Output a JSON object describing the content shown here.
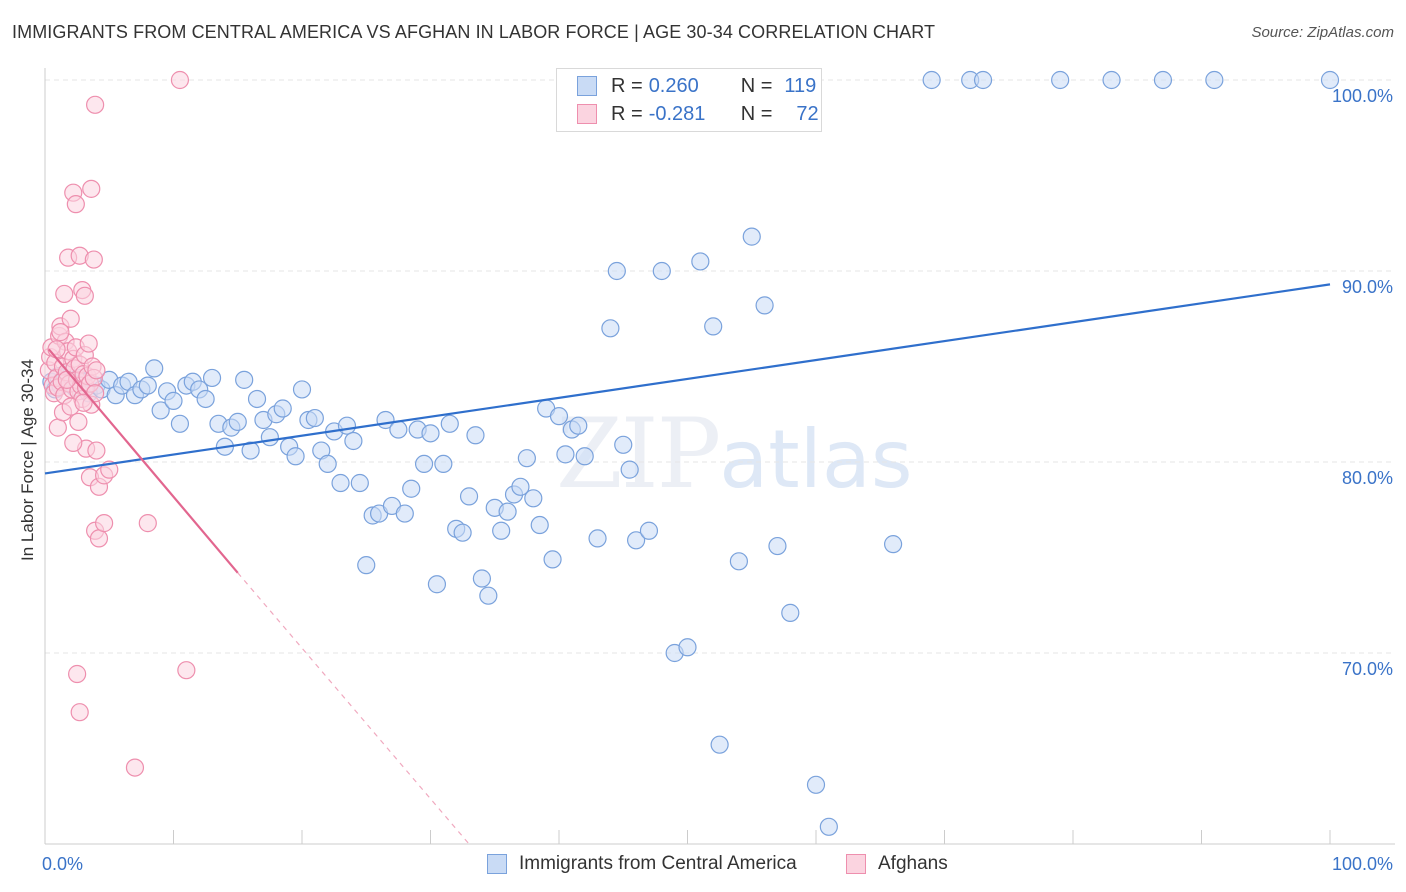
{
  "header": {
    "title": "IMMIGRANTS FROM CENTRAL AMERICA VS AFGHAN IN LABOR FORCE | AGE 30-34 CORRELATION CHART",
    "source": "Source: ZipAtlas.com"
  },
  "watermark": {
    "part1": "ZIP",
    "part2": "atlas"
  },
  "legend": {
    "rows": [
      {
        "r_label": "R =",
        "r_value": "0.260",
        "n_label": "N =",
        "n_value": "119",
        "color": "#a9c6ee"
      },
      {
        "r_label": "R =",
        "r_value": "-0.281",
        "n_label": "N =",
        "n_value": "72",
        "color": "#f5b8cb"
      }
    ]
  },
  "bottom_legend": [
    {
      "label": "Immigrants from Central America",
      "color": "#a9c6ee"
    },
    {
      "label": "Afghans",
      "color": "#f5b8cb"
    }
  ],
  "chart_data": {
    "type": "scatter",
    "title": "IMMIGRANTS FROM CENTRAL AMERICA VS AFGHAN IN LABOR FORCE | AGE 30-34 CORRELATION CHART",
    "xlabel": "",
    "ylabel": "In Labor Force | Age 30-34",
    "xlim": [
      0,
      100
    ],
    "ylim": [
      60,
      100
    ],
    "x_tick_labels": [
      "0.0%",
      "100.0%"
    ],
    "y_tick_labels": [
      "70.0%",
      "80.0%",
      "90.0%",
      "100.0%"
    ],
    "y_ticks": [
      70,
      80,
      90,
      100
    ],
    "grid": true,
    "legend_position": "top-center",
    "series": [
      {
        "name": "Immigrants from Central America",
        "color": "#5b8fd6",
        "trend": {
          "x0": 0,
          "y0": 79.4,
          "x1": 100,
          "y1": 89.3
        },
        "points": [
          [
            0.5,
            84.2
          ],
          [
            0.8,
            83.8
          ],
          [
            1.0,
            84.5
          ],
          [
            1.2,
            84.0
          ],
          [
            1.5,
            84.3
          ],
          [
            1.8,
            84.6
          ],
          [
            2.0,
            84.1
          ],
          [
            2.3,
            83.9
          ],
          [
            2.6,
            84.4
          ],
          [
            3.0,
            84.2
          ],
          [
            3.4,
            83.6
          ],
          [
            4.0,
            84.0
          ],
          [
            4.4,
            83.8
          ],
          [
            5.0,
            84.3
          ],
          [
            5.5,
            83.5
          ],
          [
            6.0,
            84.0
          ],
          [
            6.5,
            84.2
          ],
          [
            7.0,
            83.5
          ],
          [
            7.5,
            83.8
          ],
          [
            8.0,
            84.0
          ],
          [
            8.5,
            84.9
          ],
          [
            9.0,
            82.7
          ],
          [
            9.5,
            83.7
          ],
          [
            10.0,
            83.2
          ],
          [
            10.5,
            82.0
          ],
          [
            11.0,
            84.0
          ],
          [
            11.5,
            84.2
          ],
          [
            12.0,
            83.8
          ],
          [
            12.5,
            83.3
          ],
          [
            13.0,
            84.4
          ],
          [
            13.5,
            82.0
          ],
          [
            14.0,
            80.8
          ],
          [
            14.5,
            81.8
          ],
          [
            15.0,
            82.1
          ],
          [
            15.5,
            84.3
          ],
          [
            16.0,
            80.6
          ],
          [
            16.5,
            83.3
          ],
          [
            17.0,
            82.2
          ],
          [
            17.5,
            81.3
          ],
          [
            18.0,
            82.5
          ],
          [
            18.5,
            82.8
          ],
          [
            19.0,
            80.8
          ],
          [
            19.5,
            80.3
          ],
          [
            20.0,
            83.8
          ],
          [
            20.5,
            82.2
          ],
          [
            21.0,
            82.3
          ],
          [
            21.5,
            80.6
          ],
          [
            22.0,
            79.9
          ],
          [
            22.5,
            81.6
          ],
          [
            23.0,
            78.9
          ],
          [
            23.5,
            81.9
          ],
          [
            24.0,
            81.1
          ],
          [
            24.5,
            78.9
          ],
          [
            25.0,
            74.6
          ],
          [
            25.5,
            77.2
          ],
          [
            26.0,
            77.3
          ],
          [
            26.5,
            82.2
          ],
          [
            27.0,
            77.7
          ],
          [
            27.5,
            81.7
          ],
          [
            28.0,
            77.3
          ],
          [
            28.5,
            78.6
          ],
          [
            29.0,
            81.7
          ],
          [
            29.5,
            79.9
          ],
          [
            30.0,
            81.5
          ],
          [
            30.5,
            73.6
          ],
          [
            31.0,
            79.9
          ],
          [
            31.5,
            82.0
          ],
          [
            32.0,
            76.5
          ],
          [
            32.5,
            76.3
          ],
          [
            33.0,
            78.2
          ],
          [
            33.5,
            81.4
          ],
          [
            34.0,
            73.9
          ],
          [
            34.5,
            73.0
          ],
          [
            35.0,
            77.6
          ],
          [
            35.5,
            76.4
          ],
          [
            36.0,
            77.4
          ],
          [
            36.5,
            78.3
          ],
          [
            37.0,
            78.7
          ],
          [
            37.5,
            80.2
          ],
          [
            38.0,
            78.1
          ],
          [
            38.5,
            76.7
          ],
          [
            39.0,
            82.8
          ],
          [
            39.5,
            74.9
          ],
          [
            40.0,
            82.4
          ],
          [
            40.5,
            80.4
          ],
          [
            41.0,
            81.7
          ],
          [
            41.5,
            81.9
          ],
          [
            42.0,
            80.3
          ],
          [
            43.0,
            76.0
          ],
          [
            44.0,
            87.0
          ],
          [
            44.5,
            90.0
          ],
          [
            45.0,
            80.9
          ],
          [
            45.5,
            79.6
          ],
          [
            46.0,
            75.9
          ],
          [
            47.0,
            76.4
          ],
          [
            48.0,
            90.0
          ],
          [
            49.0,
            70.0
          ],
          [
            50.0,
            70.3
          ],
          [
            51.0,
            90.5
          ],
          [
            52.0,
            87.1
          ],
          [
            52.5,
            65.2
          ],
          [
            54.0,
            74.8
          ],
          [
            55.0,
            91.8
          ],
          [
            56.0,
            88.2
          ],
          [
            57.0,
            75.6
          ],
          [
            58.0,
            72.1
          ],
          [
            60.0,
            63.1
          ],
          [
            61.0,
            60.9
          ],
          [
            66.0,
            75.7
          ],
          [
            69.0,
            100.0
          ],
          [
            72.0,
            100.0
          ],
          [
            73.0,
            100.0
          ],
          [
            79.0,
            100.0
          ],
          [
            83.0,
            100.0
          ],
          [
            87.0,
            100.0
          ],
          [
            91.0,
            100.0
          ],
          [
            100.0,
            100.0
          ],
          [
            48.5,
            100.0
          ],
          [
            57.0,
            100.0
          ]
        ]
      },
      {
        "name": "Afghans",
        "color": "#ee8fae",
        "trend": {
          "x0": 0.3,
          "y0": 85.9,
          "x1": 15.0,
          "y1": 74.2,
          "dash_x1": 33.0,
          "dash_y1": 60.0
        },
        "points": [
          [
            0.3,
            84.8
          ],
          [
            0.4,
            85.5
          ],
          [
            0.5,
            86.0
          ],
          [
            0.6,
            84.0
          ],
          [
            0.7,
            83.6
          ],
          [
            0.8,
            85.2
          ],
          [
            0.9,
            84.4
          ],
          [
            1.0,
            83.9
          ],
          [
            1.1,
            86.6
          ],
          [
            1.2,
            87.1
          ],
          [
            1.3,
            84.2
          ],
          [
            1.4,
            85.0
          ],
          [
            1.5,
            83.5
          ],
          [
            1.6,
            86.3
          ],
          [
            1.7,
            84.7
          ],
          [
            1.8,
            85.8
          ],
          [
            1.9,
            84.1
          ],
          [
            2.0,
            87.5
          ],
          [
            2.1,
            83.8
          ],
          [
            2.2,
            85.4
          ],
          [
            2.3,
            84.9
          ],
          [
            2.4,
            86.0
          ],
          [
            2.5,
            84.3
          ],
          [
            2.6,
            83.7
          ],
          [
            2.7,
            85.1
          ],
          [
            2.8,
            84.0
          ],
          [
            2.9,
            83.3
          ],
          [
            3.0,
            84.6
          ],
          [
            3.1,
            85.6
          ],
          [
            3.2,
            83.9
          ],
          [
            3.3,
            84.5
          ],
          [
            3.4,
            86.2
          ],
          [
            3.5,
            84.1
          ],
          [
            3.6,
            83.0
          ],
          [
            3.7,
            85.0
          ],
          [
            3.8,
            84.4
          ],
          [
            3.9,
            83.6
          ],
          [
            4.0,
            84.8
          ],
          [
            1.5,
            88.8
          ],
          [
            1.8,
            90.7
          ],
          [
            2.2,
            94.1
          ],
          [
            2.4,
            93.5
          ],
          [
            2.7,
            90.8
          ],
          [
            2.9,
            89.0
          ],
          [
            3.1,
            88.7
          ],
          [
            3.6,
            94.3
          ],
          [
            3.8,
            90.6
          ],
          [
            1.2,
            86.8
          ],
          [
            1.0,
            81.8
          ],
          [
            1.4,
            82.6
          ],
          [
            2.0,
            82.9
          ],
          [
            2.6,
            82.1
          ],
          [
            3.2,
            80.7
          ],
          [
            3.5,
            79.2
          ],
          [
            4.0,
            80.6
          ],
          [
            4.2,
            78.7
          ],
          [
            4.6,
            79.3
          ],
          [
            5.0,
            79.6
          ],
          [
            3.9,
            76.4
          ],
          [
            4.2,
            76.0
          ],
          [
            4.6,
            76.8
          ],
          [
            8.0,
            76.8
          ],
          [
            2.5,
            68.9
          ],
          [
            2.7,
            66.9
          ],
          [
            7.0,
            64.0
          ],
          [
            11.0,
            69.1
          ],
          [
            10.5,
            100.0
          ],
          [
            3.9,
            98.7
          ],
          [
            2.2,
            81.0
          ],
          [
            1.7,
            84.3
          ],
          [
            0.9,
            85.9
          ],
          [
            3.0,
            83.1
          ]
        ]
      }
    ]
  }
}
